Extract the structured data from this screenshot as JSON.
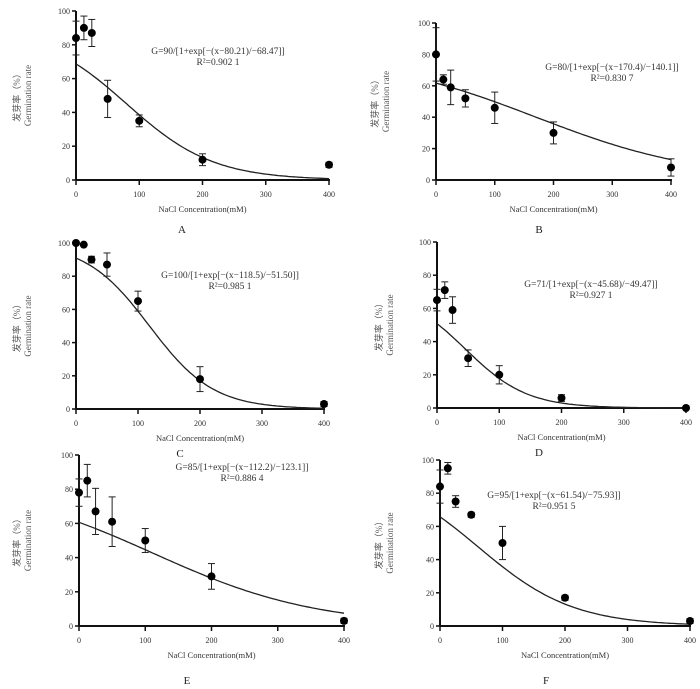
{
  "chart_data": [
    {
      "type": "scatter",
      "panel": "A",
      "title": "",
      "xlabel": "NaCl Concentration(mM)",
      "ylabel_cn": "发芽率（%）",
      "ylabel": "Germination rate",
      "xlim": [
        0,
        400
      ],
      "ylim": [
        0,
        100
      ],
      "xticks": [
        "0",
        "100",
        "200",
        "300",
        "400"
      ],
      "yticks": [
        "0",
        "20",
        "40",
        "60",
        "80",
        "100"
      ],
      "points": [
        {
          "x": 0,
          "y": 84,
          "err": 10
        },
        {
          "x": 12.5,
          "y": 90,
          "err": 7
        },
        {
          "x": 25,
          "y": 87,
          "err": 8
        },
        {
          "x": 50,
          "y": 48,
          "err": 11
        },
        {
          "x": 100,
          "y": 35,
          "err": 3.5
        },
        {
          "x": 200,
          "y": 12,
          "err": 3.5
        },
        {
          "x": 400,
          "y": 9,
          "err": 1.5
        }
      ],
      "fit": {
        "a": 90,
        "x0": 80.21,
        "b": -68.47
      },
      "equation": "G=90/[1+exp[−(x−80.21)/−68.47]]",
      "r2_text": "R²=0.902 1"
    },
    {
      "type": "scatter",
      "panel": "B",
      "xlabel": "NaCl Concentration(mM)",
      "ylabel_cn": "发芽率（%）",
      "ylabel": "Germination rate",
      "xlim": [
        0,
        400
      ],
      "ylim": [
        0,
        100
      ],
      "xticks": [
        "0",
        "100",
        "200",
        "300",
        "400"
      ],
      "yticks": [
        "0",
        "20",
        "40",
        "60",
        "80",
        "100"
      ],
      "points": [
        {
          "x": 0,
          "y": 80,
          "err": 17
        },
        {
          "x": 12.5,
          "y": 64,
          "err": 3
        },
        {
          "x": 25,
          "y": 59,
          "err": 11
        },
        {
          "x": 50,
          "y": 52,
          "err": 5.5
        },
        {
          "x": 100,
          "y": 46,
          "err": 10
        },
        {
          "x": 200,
          "y": 30,
          "err": 7
        },
        {
          "x": 400,
          "y": 8,
          "err": 5.5
        }
      ],
      "fit": {
        "a": 80,
        "x0": 170.4,
        "b": -140.1
      },
      "equation": "G=80/[1+exp[−(x−170.4)/−140.1]]",
      "r2_text": "R²=0.830 7"
    },
    {
      "type": "scatter",
      "panel": "C",
      "xlabel": "NaCl Concentration(mM)",
      "ylabel_cn": "发芽率（%）",
      "ylabel": "Germination rate",
      "xlim": [
        0,
        400
      ],
      "ylim": [
        0,
        100
      ],
      "xticks": [
        "0",
        "100",
        "200",
        "300",
        "400"
      ],
      "yticks": [
        "0",
        "20",
        "40",
        "60",
        "80",
        "100"
      ],
      "points": [
        {
          "x": 0,
          "y": 100,
          "err": 0
        },
        {
          "x": 12.5,
          "y": 99,
          "err": 0.5
        },
        {
          "x": 25,
          "y": 90,
          "err": 2
        },
        {
          "x": 50,
          "y": 87,
          "err": 7
        },
        {
          "x": 100,
          "y": 65,
          "err": 6
        },
        {
          "x": 200,
          "y": 18,
          "err": 7.5
        },
        {
          "x": 400,
          "y": 3,
          "err": 1.5
        }
      ],
      "fit": {
        "a": 100,
        "x0": 118.5,
        "b": -51.5
      },
      "equation": "G=100/[1+exp[−(x−118.5)/−51.50]]",
      "r2_text": "R²=0.985 1"
    },
    {
      "type": "scatter",
      "panel": "D",
      "xlabel": "NaCl Concentration(mM)",
      "ylabel_cn": "发芽率（%）",
      "ylabel": "Germination rate",
      "xlim": [
        0,
        400
      ],
      "ylim": [
        0,
        100
      ],
      "xticks": [
        "0",
        "100",
        "200",
        "300",
        "400"
      ],
      "yticks": [
        "0",
        "20",
        "40",
        "60",
        "80",
        "100"
      ],
      "points": [
        {
          "x": 0,
          "y": 65,
          "err": 6.5
        },
        {
          "x": 12.5,
          "y": 71,
          "err": 5
        },
        {
          "x": 25,
          "y": 59,
          "err": 8
        },
        {
          "x": 50,
          "y": 30,
          "err": 5
        },
        {
          "x": 100,
          "y": 20,
          "err": 5.5
        },
        {
          "x": 200,
          "y": 6,
          "err": 2
        },
        {
          "x": 400,
          "y": 0,
          "err": 0
        }
      ],
      "fit": {
        "a": 71,
        "x0": 45.68,
        "b": -49.47
      },
      "equation": "G=71/[1+exp[−(x−45.68)/−49.47]]",
      "r2_text": "R²=0.927 1"
    },
    {
      "type": "scatter",
      "panel": "E",
      "xlabel": "NaCl Concentration(mM)",
      "ylabel_cn": "发芽率（%）",
      "ylabel": "Germination rate",
      "xlim": [
        0,
        400
      ],
      "ylim": [
        0,
        100
      ],
      "xticks": [
        "0",
        "100",
        "200",
        "300",
        "400"
      ],
      "yticks": [
        "0",
        "20",
        "40",
        "60",
        "80",
        "100"
      ],
      "points": [
        {
          "x": 0,
          "y": 78,
          "err": 8
        },
        {
          "x": 12.5,
          "y": 85,
          "err": 9.5
        },
        {
          "x": 25,
          "y": 67,
          "err": 13.5
        },
        {
          "x": 50,
          "y": 61,
          "err": 14.5
        },
        {
          "x": 100,
          "y": 50,
          "err": 7
        },
        {
          "x": 200,
          "y": 29,
          "err": 7.5
        },
        {
          "x": 400,
          "y": 3,
          "err": 1.5
        }
      ],
      "fit": {
        "a": 85,
        "x0": 112.2,
        "b": -123.1
      },
      "equation": "G=85/[1+exp[−(x−112.2)/−123.1]]",
      "r2_text": "R²=0.886 4"
    },
    {
      "type": "scatter",
      "panel": "F",
      "xlabel": "NaCl Concentration(mM)",
      "ylabel_cn": "发芽率（%）",
      "ylabel": "Germination rate",
      "xlim": [
        0,
        400
      ],
      "ylim": [
        0,
        100
      ],
      "xticks": [
        "0",
        "100",
        "200",
        "300",
        "400"
      ],
      "yticks": [
        "0",
        "20",
        "40",
        "60",
        "80",
        "100"
      ],
      "points": [
        {
          "x": 0,
          "y": 84,
          "err": 10
        },
        {
          "x": 12.5,
          "y": 95,
          "err": 3.5
        },
        {
          "x": 25,
          "y": 75,
          "err": 3.5
        },
        {
          "x": 50,
          "y": 67,
          "err": 1.5
        },
        {
          "x": 100,
          "y": 50,
          "err": 10
        },
        {
          "x": 200,
          "y": 17,
          "err": 1.5
        },
        {
          "x": 400,
          "y": 3,
          "err": 1.5
        }
      ],
      "fit": {
        "a": 95,
        "x0": 61.54,
        "b": -75.93
      },
      "equation": "G=95/[1+exp[−(x−61.54)/−75.93]]",
      "r2_text": "R²=0.951 5"
    }
  ]
}
